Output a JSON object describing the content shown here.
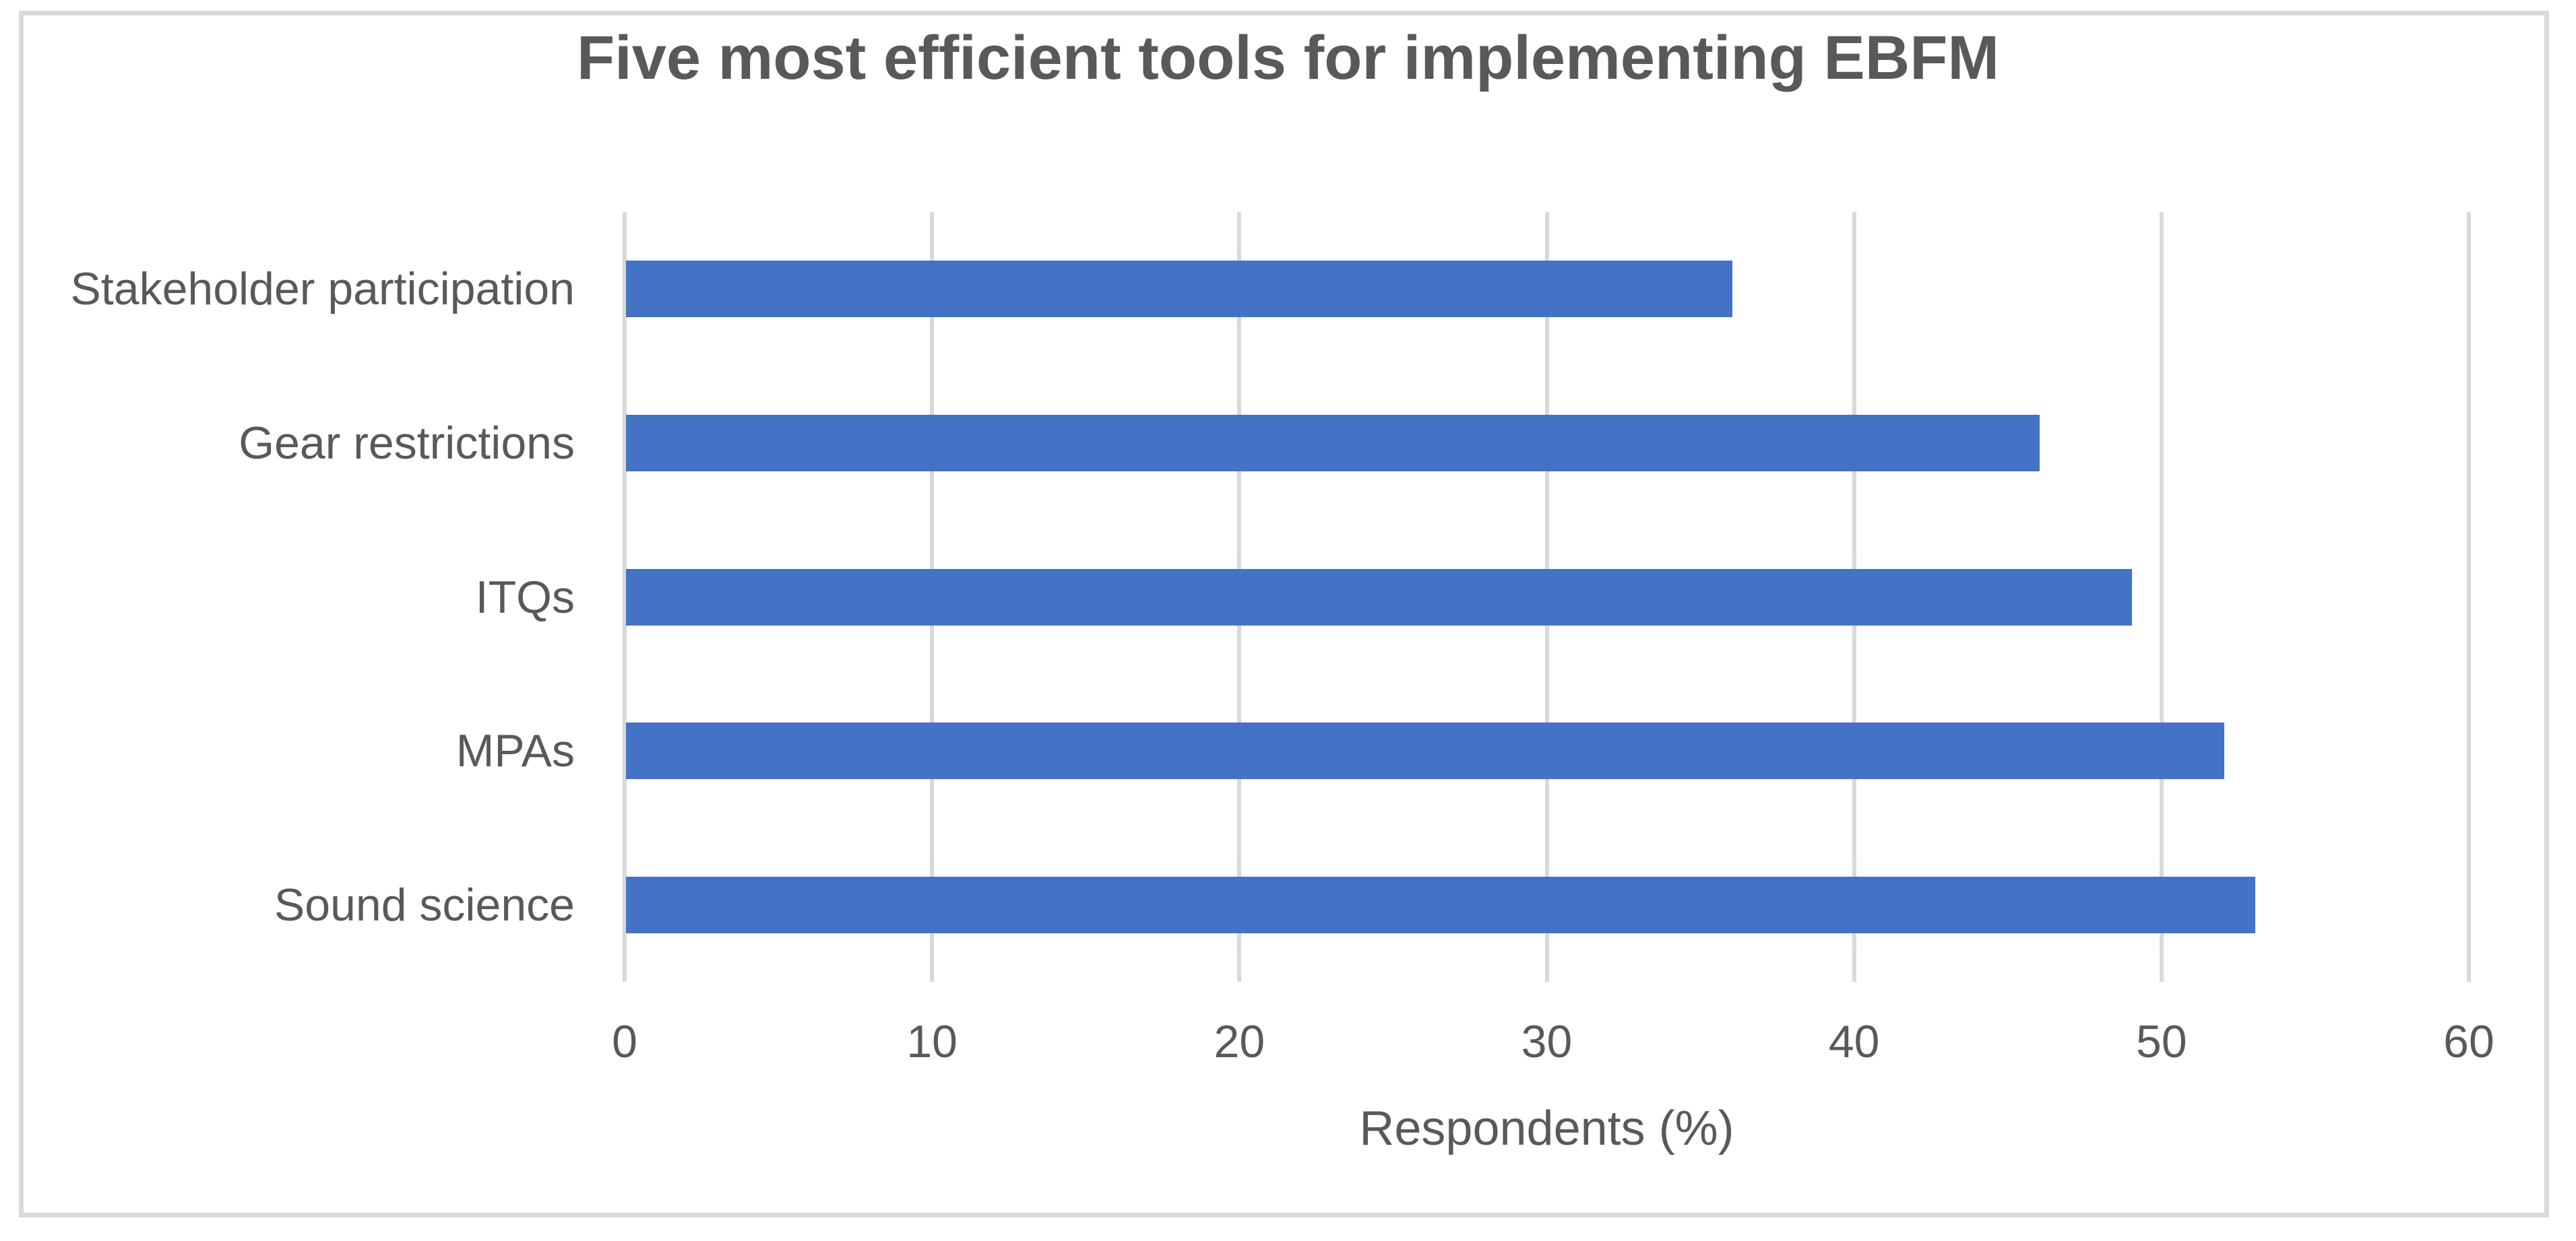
{
  "chart_data": {
    "type": "bar",
    "orientation": "horizontal",
    "title": "Five most efficient tools for implementing EBFM",
    "categories": [
      "Stakeholder participation",
      "Gear restrictions",
      "ITQs",
      "MPAs",
      "Sound science"
    ],
    "values": [
      36,
      46,
      49,
      52,
      53
    ],
    "xlabel": "Respondents (%)",
    "ylabel": "",
    "xlim": [
      0,
      60
    ],
    "xticks": [
      0,
      10,
      20,
      30,
      40,
      50,
      60
    ],
    "grid": true,
    "legend": false,
    "colors": {
      "bar": "#4472C4",
      "gridline": "#D9D9D9",
      "text": "#595959",
      "title": "#595959",
      "frame_border": "#D9D9D9",
      "background": "#FFFFFF"
    }
  }
}
